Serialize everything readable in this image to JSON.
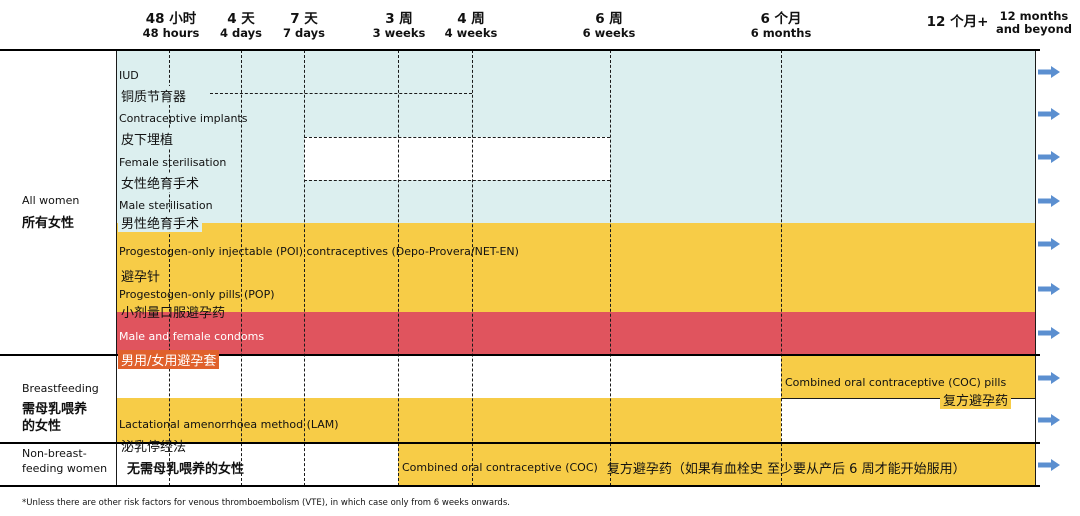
{
  "chart_data": {
    "type": "timeline",
    "time_axis": [
      {
        "zh": "48 小时",
        "en": "48 hours",
        "weeks": 0.2857
      },
      {
        "zh": "4 天",
        "en": "4 days",
        "weeks": 0.5714
      },
      {
        "zh": "7 天",
        "en": "7 days",
        "weeks": 1
      },
      {
        "zh": "3 周",
        "en": "3 weeks",
        "weeks": 3
      },
      {
        "zh": "4 周",
        "en": "4 weeks",
        "weeks": 4
      },
      {
        "zh": "6 周",
        "en": "6 weeks",
        "weeks": 6
      },
      {
        "zh": "6 个月",
        "en": "6 months",
        "weeks": 26
      },
      {
        "zh": "12 个月+",
        "en": "12 months and beyond",
        "weeks": 52
      }
    ],
    "groups": [
      {
        "en": "All women",
        "zh": "所有女性"
      },
      {
        "en": "Breastfeeding",
        "zh": "需母乳喂养的女性"
      },
      {
        "en": "Non-breast-feeding women",
        "zh": ""
      }
    ],
    "methods": [
      {
        "en": "IUD",
        "zh": "铜质节育器",
        "group": "All women",
        "color": "#dcefef",
        "eligible": "0–48 hours, from 4 weeks onwards"
      },
      {
        "en": "Contraceptive implants",
        "zh": "皮下埋植",
        "group": "All women",
        "color": "#dcefef",
        "eligible": "from birth onwards"
      },
      {
        "en": "Female sterilisation",
        "zh": "女性绝育手术",
        "group": "All women",
        "color": "#dcefef",
        "eligible": "0–7 days, from 6 weeks onwards"
      },
      {
        "en": "Male sterilisation",
        "zh": "男性绝育手术",
        "group": "All women",
        "color": "#dcefef",
        "eligible": "from birth onwards"
      },
      {
        "en": "Progestogen-only injectable (POI) contraceptives (Depo-Provera/NET-EN)",
        "zh": "避孕针",
        "group": "All women",
        "color": "#f7cc47",
        "eligible": "from birth onwards"
      },
      {
        "en": "Progestogen-only pills (POP)",
        "zh": "小剂量口服避孕药",
        "group": "All women",
        "color": "#f7cc47",
        "eligible": "from birth onwards"
      },
      {
        "en": "Male and female condoms",
        "zh": "男用/女用避孕套",
        "group": "All women",
        "color": "#e0545e",
        "eligible": "from birth onwards"
      },
      {
        "en": "Combined oral contraceptive (COC) pills",
        "zh": "复方避孕药",
        "group": "Breastfeeding",
        "color": "#f7cc47",
        "eligible": "from 6 months onwards"
      },
      {
        "en": "Lactational amenorrhoea method (LAM)",
        "zh": "泌乳停经法",
        "group": "Breastfeeding",
        "color": "#f7cc47",
        "eligible": "birth to 6 months"
      },
      {
        "en": "Combined oral contraceptive (COC)",
        "zh": "复方避孕药（如果有血栓史 至少要从产后 6 周才能开始服用）",
        "group": "Non-breast-feeding women",
        "color": "#f7cc47",
        "eligible": "from 3 weeks onwards"
      }
    ]
  },
  "header": {
    "h48": {
      "zh": "48 小时",
      "en": "48 hours"
    },
    "d4": {
      "zh": "4 天",
      "en": "4 days"
    },
    "d7": {
      "zh": "7 天",
      "en": "7 days"
    },
    "w3": {
      "zh": "3 周",
      "en": "3 weeks"
    },
    "w4": {
      "zh": "4 周",
      "en": "4 weeks"
    },
    "w6": {
      "zh": "6 周",
      "en": "6 weeks"
    },
    "m6": {
      "zh": "6 个月",
      "en": "6 months"
    },
    "m12": {
      "zh": "12 个月+",
      "en1": "12 months",
      "en2": "and beyond"
    }
  },
  "rows": {
    "all_women": {
      "en": "All women",
      "zh": "所有女性"
    },
    "breastfeeding": {
      "en": "Breastfeeding",
      "zh1": "需母乳喂养",
      "zh2": "的女性"
    },
    "non_bf": {
      "en1": "Non-breast-",
      "en2": "feeding women",
      "zh": "无需母乳喂养的女性"
    }
  },
  "labels": {
    "iud": {
      "en": "IUD",
      "zh": "铜质节育器"
    },
    "implants": {
      "en": "Contraceptive implants",
      "zh": "皮下埋植"
    },
    "fsterile": {
      "en": "Female sterilisation",
      "zh": "女性绝育手术"
    },
    "msterile": {
      "en": "Male sterilisation",
      "zh": "男性绝育手术"
    },
    "poi": {
      "en": "Progestogen-only injectable (POI) contraceptives (Depo-Provera/NET-EN)",
      "zh": "避孕针"
    },
    "pop": {
      "en": "Progestogen-only pills (POP)",
      "zh": "小剂量口服避孕药"
    },
    "condoms": {
      "en": "Male and female condoms",
      "zh": "男用/女用避孕套"
    },
    "coc_bf": {
      "en": "Combined oral contraceptive (COC) pills",
      "zh": "复方避孕药"
    },
    "lam": {
      "en": "Lactational amenorrhoea method (LAM)",
      "zh": "泌乳停经法"
    },
    "coc_nbf": {
      "en": "Combined oral contraceptive (COC)",
      "zh": "复方避孕药（如果有血栓史 至少要从产后 6 周才能开始服用）"
    }
  },
  "colors": {
    "light_teal": "#dcefef",
    "yellow": "#f7cc47",
    "red": "#e0545e",
    "arrow": "#5b8fd0",
    "condom_zh_bg": "#e0612c"
  },
  "footnote": "*Unless there are other risk factors for venous thromboembolism (VTE), in which case only from 6 weeks onwards."
}
